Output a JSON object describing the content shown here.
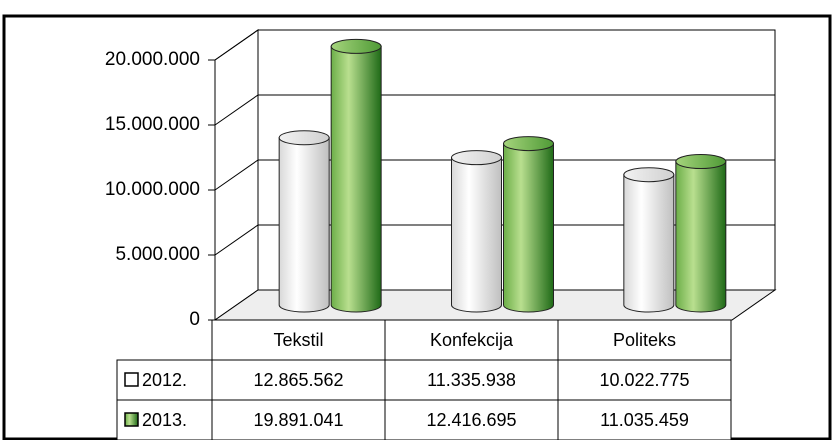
{
  "chart_data": {
    "type": "bar3d",
    "categories": [
      "Tekstil",
      "Konfekcija",
      "Politeks"
    ],
    "series": [
      {
        "name": "2012.",
        "color": "#ffffff",
        "values": [
          12865562,
          11335938,
          10022775
        ],
        "value_labels": [
          "12.865.562",
          "11.335.938",
          "10.022.775"
        ]
      },
      {
        "name": "2013.",
        "color": "#5aa838",
        "values": [
          19891041,
          12416695,
          11035459
        ],
        "value_labels": [
          "19.891.041",
          "12.416.695",
          "11.035.459"
        ]
      }
    ],
    "ylim": [
      0,
      20000000
    ],
    "yticks": [
      0,
      {
        "value": 5000000,
        "label": "5.000.000"
      },
      {
        "value": 10000000,
        "label": "10.000.000"
      },
      {
        "value": 15000000,
        "label": "15.000.000"
      },
      {
        "value": 20000000,
        "label": "20.000.000"
      }
    ],
    "grid": true
  }
}
